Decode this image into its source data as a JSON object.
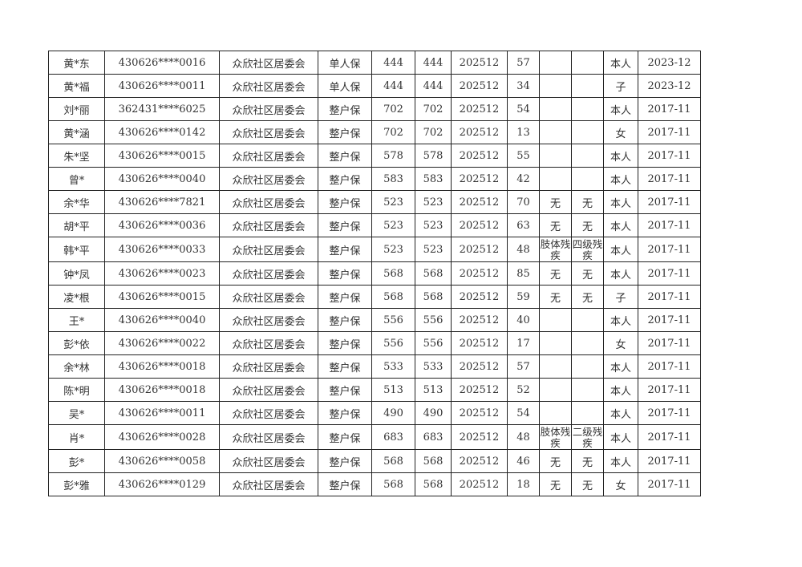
{
  "table": {
    "rows": [
      [
        "黄*东",
        "430626****0016",
        "众欣社区居委会",
        "单人保",
        "444",
        "444",
        "202512",
        "57",
        "",
        "",
        "本人",
        "2023-12"
      ],
      [
        "黄*福",
        "430626****0011",
        "众欣社区居委会",
        "单人保",
        "444",
        "444",
        "202512",
        "34",
        "",
        "",
        "子",
        "2023-12"
      ],
      [
        "刘*丽",
        "362431****6025",
        "众欣社区居委会",
        "整户保",
        "702",
        "702",
        "202512",
        "54",
        "",
        "",
        "本人",
        "2017-11"
      ],
      [
        "黄*涵",
        "430626****0142",
        "众欣社区居委会",
        "整户保",
        "702",
        "702",
        "202512",
        "13",
        "",
        "",
        "女",
        "2017-11"
      ],
      [
        "朱*坚",
        "430626****0015",
        "众欣社区居委会",
        "整户保",
        "578",
        "578",
        "202512",
        "55",
        "",
        "",
        "本人",
        "2017-11"
      ],
      [
        "曾*",
        "430626****0040",
        "众欣社区居委会",
        "整户保",
        "583",
        "583",
        "202512",
        "42",
        "",
        "",
        "本人",
        "2017-11"
      ],
      [
        "余*华",
        "430626****7821",
        "众欣社区居委会",
        "整户保",
        "523",
        "523",
        "202512",
        "70",
        "无",
        "无",
        "本人",
        "2017-11"
      ],
      [
        "胡*平",
        "430626****0036",
        "众欣社区居委会",
        "整户保",
        "523",
        "523",
        "202512",
        "63",
        "无",
        "无",
        "本人",
        "2017-11"
      ],
      [
        "韩*平",
        "430626****0033",
        "众欣社区居委会",
        "整户保",
        "523",
        "523",
        "202512",
        "48",
        "肢体残疾",
        "四级残疾",
        "本人",
        "2017-11"
      ],
      [
        "钟*凤",
        "430626****0023",
        "众欣社区居委会",
        "整户保",
        "568",
        "568",
        "202512",
        "85",
        "无",
        "无",
        "本人",
        "2017-11"
      ],
      [
        "凌*根",
        "430626****0015",
        "众欣社区居委会",
        "整户保",
        "568",
        "568",
        "202512",
        "59",
        "无",
        "无",
        "子",
        "2017-11"
      ],
      [
        "王*",
        "430626****0040",
        "众欣社区居委会",
        "整户保",
        "556",
        "556",
        "202512",
        "40",
        "",
        "",
        "本人",
        "2017-11"
      ],
      [
        "彭*依",
        "430626****0022",
        "众欣社区居委会",
        "整户保",
        "556",
        "556",
        "202512",
        "17",
        "",
        "",
        "女",
        "2017-11"
      ],
      [
        "余*林",
        "430626****0018",
        "众欣社区居委会",
        "整户保",
        "533",
        "533",
        "202512",
        "57",
        "",
        "",
        "本人",
        "2017-11"
      ],
      [
        "陈*明",
        "430626****0018",
        "众欣社区居委会",
        "整户保",
        "513",
        "513",
        "202512",
        "52",
        "",
        "",
        "本人",
        "2017-11"
      ],
      [
        "吴*",
        "430626****0011",
        "众欣社区居委会",
        "整户保",
        "490",
        "490",
        "202512",
        "54",
        "",
        "",
        "本人",
        "2017-11"
      ],
      [
        "肖*",
        "430626****0028",
        "众欣社区居委会",
        "整户保",
        "683",
        "683",
        "202512",
        "48",
        "肢体残疾",
        "二级残疾",
        "本人",
        "2017-11"
      ],
      [
        "彭*",
        "430626****0058",
        "众欣社区居委会",
        "整户保",
        "568",
        "568",
        "202512",
        "46",
        "无",
        "无",
        "本人",
        "2017-11"
      ],
      [
        "彭*雅",
        "430626****0129",
        "众欣社区居委会",
        "整户保",
        "568",
        "568",
        "202512",
        "18",
        "无",
        "无",
        "女",
        "2017-11"
      ]
    ]
  }
}
